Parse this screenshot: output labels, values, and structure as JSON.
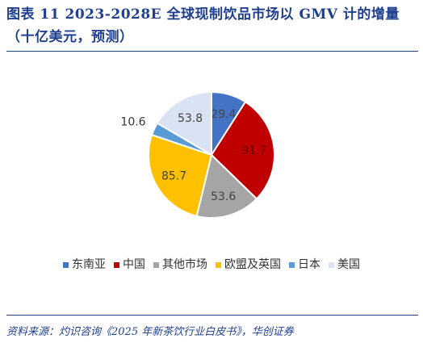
{
  "header": {
    "title": "图表 11 2023-2028E 全球现制饮品市场以 GMV 计的增量（十亿美元，预测）"
  },
  "chart_data": {
    "type": "pie",
    "title": "",
    "slices": [
      {
        "label": "东南亚",
        "value": 29.4,
        "color": "#4472c4"
      },
      {
        "label": "中国",
        "value": 91.7,
        "color": "#c00000"
      },
      {
        "label": "其他市场",
        "value": 53.6,
        "color": "#a5a5a5"
      },
      {
        "label": "欧盟及英国",
        "value": 85.7,
        "color": "#ffc000"
      },
      {
        "label": "日本",
        "value": 10.6,
        "color": "#5b9bd5"
      },
      {
        "label": "美国",
        "value": 53.8,
        "color": "#dae3f3"
      }
    ],
    "legend_position": "bottom"
  },
  "footer": {
    "source": "资料来源：灼识咨询《2025 年新茶饮行业白皮书》，华创证券"
  }
}
